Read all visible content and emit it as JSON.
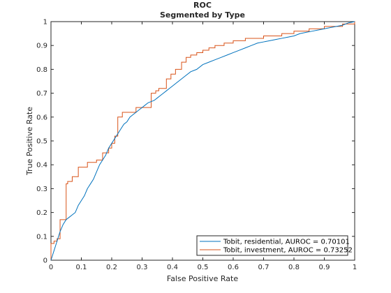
{
  "chart_data": {
    "type": "line",
    "title": "ROC",
    "subtitle": "Segmented by Type",
    "xlabel": "False Positive Rate",
    "ylabel": "True Positive Rate",
    "xlim": [
      0,
      1
    ],
    "ylim": [
      0,
      1
    ],
    "xticks": [
      "0",
      "0.1",
      "0.2",
      "0.3",
      "0.4",
      "0.5",
      "0.6",
      "0.7",
      "0.8",
      "0.9",
      "1"
    ],
    "yticks": [
      "0",
      "0.1",
      "0.2",
      "0.3",
      "0.4",
      "0.5",
      "0.6",
      "0.7",
      "0.8",
      "0.9",
      "1"
    ],
    "grid": false,
    "legend_position": "bottom-right",
    "series": [
      {
        "name": "Tobit, residential, AUROC = 0.70101",
        "color": "#0072BD",
        "x": [
          0,
          0.005,
          0.01,
          0.015,
          0.02,
          0.03,
          0.04,
          0.05,
          0.06,
          0.07,
          0.08,
          0.09,
          0.1,
          0.11,
          0.12,
          0.13,
          0.14,
          0.15,
          0.16,
          0.17,
          0.18,
          0.19,
          0.2,
          0.21,
          0.22,
          0.23,
          0.24,
          0.25,
          0.26,
          0.27,
          0.28,
          0.29,
          0.3,
          0.31,
          0.32,
          0.33,
          0.34,
          0.35,
          0.36,
          0.37,
          0.38,
          0.39,
          0.4,
          0.42,
          0.44,
          0.46,
          0.48,
          0.5,
          0.52,
          0.54,
          0.56,
          0.58,
          0.6,
          0.62,
          0.64,
          0.66,
          0.68,
          0.7,
          0.72,
          0.74,
          0.76,
          0.78,
          0.8,
          0.82,
          0.84,
          0.86,
          0.88,
          0.9,
          0.92,
          0.94,
          0.96,
          0.98,
          1.0
        ],
        "y": [
          0,
          0.02,
          0.04,
          0.06,
          0.08,
          0.12,
          0.15,
          0.17,
          0.18,
          0.19,
          0.2,
          0.23,
          0.25,
          0.27,
          0.3,
          0.32,
          0.34,
          0.37,
          0.4,
          0.42,
          0.44,
          0.47,
          0.49,
          0.51,
          0.53,
          0.55,
          0.57,
          0.58,
          0.6,
          0.61,
          0.62,
          0.63,
          0.64,
          0.65,
          0.66,
          0.665,
          0.67,
          0.68,
          0.69,
          0.7,
          0.71,
          0.72,
          0.73,
          0.75,
          0.77,
          0.79,
          0.8,
          0.82,
          0.83,
          0.84,
          0.85,
          0.86,
          0.87,
          0.88,
          0.89,
          0.9,
          0.91,
          0.915,
          0.92,
          0.925,
          0.93,
          0.935,
          0.94,
          0.95,
          0.955,
          0.96,
          0.965,
          0.97,
          0.975,
          0.98,
          0.985,
          0.995,
          1.0
        ]
      },
      {
        "name": "Tobit, investment, AUROC = 0.73252",
        "color": "#D95319",
        "x": [
          0,
          0,
          0.01,
          0.01,
          0.02,
          0.02,
          0.03,
          0.03,
          0.05,
          0.05,
          0.055,
          0.055,
          0.07,
          0.07,
          0.09,
          0.09,
          0.12,
          0.12,
          0.15,
          0.15,
          0.17,
          0.17,
          0.19,
          0.19,
          0.2,
          0.2,
          0.21,
          0.21,
          0.22,
          0.22,
          0.235,
          0.235,
          0.25,
          0.25,
          0.28,
          0.28,
          0.33,
          0.33,
          0.345,
          0.345,
          0.355,
          0.355,
          0.38,
          0.38,
          0.395,
          0.395,
          0.41,
          0.41,
          0.43,
          0.43,
          0.445,
          0.445,
          0.46,
          0.46,
          0.48,
          0.48,
          0.5,
          0.5,
          0.52,
          0.52,
          0.54,
          0.54,
          0.57,
          0.57,
          0.6,
          0.6,
          0.64,
          0.64,
          0.7,
          0.7,
          0.76,
          0.76,
          0.8,
          0.8,
          0.85,
          0.85,
          0.9,
          0.9,
          0.96,
          0.96,
          1.0,
          1.0
        ],
        "y": [
          0,
          0.07,
          0.07,
          0.08,
          0.08,
          0.09,
          0.09,
          0.17,
          0.17,
          0.32,
          0.32,
          0.33,
          0.33,
          0.35,
          0.35,
          0.39,
          0.39,
          0.41,
          0.41,
          0.42,
          0.42,
          0.45,
          0.45,
          0.47,
          0.47,
          0.49,
          0.49,
          0.52,
          0.52,
          0.6,
          0.6,
          0.62,
          0.62,
          0.62,
          0.62,
          0.64,
          0.64,
          0.7,
          0.7,
          0.71,
          0.71,
          0.72,
          0.72,
          0.76,
          0.76,
          0.78,
          0.78,
          0.8,
          0.8,
          0.83,
          0.83,
          0.85,
          0.85,
          0.86,
          0.86,
          0.87,
          0.87,
          0.88,
          0.88,
          0.89,
          0.89,
          0.9,
          0.9,
          0.91,
          0.91,
          0.92,
          0.92,
          0.93,
          0.93,
          0.94,
          0.94,
          0.95,
          0.95,
          0.96,
          0.96,
          0.97,
          0.97,
          0.98,
          0.98,
          0.99,
          0.99,
          1.0
        ]
      }
    ]
  }
}
